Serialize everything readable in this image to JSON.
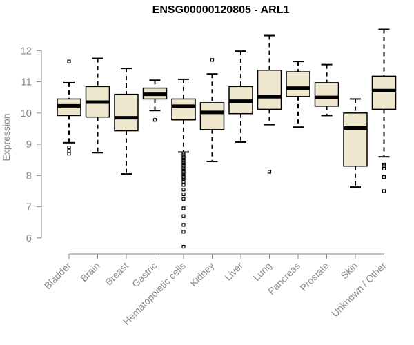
{
  "chart_data": {
    "type": "boxplot",
    "title": "ENSG00000120805 - ARL1",
    "ylabel": "Expression",
    "xlabel": "",
    "ylim": [
      5.6,
      13.0
    ],
    "yticks": [
      6,
      7,
      8,
      9,
      10,
      11,
      12
    ],
    "grid": false,
    "box_fill": "#efe8cf",
    "box_stroke": "#000000",
    "axis_color": "#888888",
    "categories": [
      "Bladder",
      "Brain",
      "Breast",
      "Gastric",
      "Hematopoietic cells",
      "Kidney",
      "Liver",
      "Lung",
      "Pancreas",
      "Prostate",
      "Skin",
      "Unknown / Other"
    ],
    "boxes": [
      {
        "category": "Bladder",
        "whisker_low": 9.05,
        "q1": 9.92,
        "median": 10.23,
        "q3": 10.45,
        "whisker_high": 10.97,
        "outliers": [
          11.65,
          8.9,
          8.78,
          8.7
        ]
      },
      {
        "category": "Brain",
        "whisker_low": 8.73,
        "q1": 9.87,
        "median": 10.35,
        "q3": 10.85,
        "whisker_high": 11.75,
        "outliers": []
      },
      {
        "category": "Breast",
        "whisker_low": 8.05,
        "q1": 9.43,
        "median": 9.85,
        "q3": 10.6,
        "whisker_high": 11.43,
        "outliers": []
      },
      {
        "category": "Gastric",
        "whisker_low": 10.08,
        "q1": 10.45,
        "median": 10.6,
        "q3": 10.8,
        "whisker_high": 11.05,
        "outliers": [
          9.78
        ]
      },
      {
        "category": "Hematopoietic cells",
        "whisker_low": 8.75,
        "q1": 9.78,
        "median": 10.22,
        "q3": 10.45,
        "whisker_high": 11.08,
        "outliers": [
          8.7,
          8.65,
          8.6,
          8.55,
          8.5,
          8.45,
          8.4,
          8.35,
          8.3,
          8.25,
          8.2,
          8.15,
          8.1,
          8.05,
          8.0,
          7.95,
          7.9,
          7.8,
          7.7,
          7.55,
          7.4,
          7.25,
          6.95,
          6.7,
          6.42,
          6.2,
          5.72
        ]
      },
      {
        "category": "Kidney",
        "whisker_low": 8.45,
        "q1": 9.47,
        "median": 10.02,
        "q3": 10.33,
        "whisker_high": 11.25,
        "outliers": [
          11.7
        ]
      },
      {
        "category": "Liver",
        "whisker_low": 9.07,
        "q1": 9.98,
        "median": 10.38,
        "q3": 10.85,
        "whisker_high": 11.98,
        "outliers": []
      },
      {
        "category": "Lung",
        "whisker_low": 9.63,
        "q1": 10.12,
        "median": 10.52,
        "q3": 11.37,
        "whisker_high": 12.48,
        "outliers": [
          8.12
        ]
      },
      {
        "category": "Pancreas",
        "whisker_low": 9.55,
        "q1": 10.53,
        "median": 10.8,
        "q3": 11.32,
        "whisker_high": 11.65,
        "outliers": []
      },
      {
        "category": "Prostate",
        "whisker_low": 9.92,
        "q1": 10.22,
        "median": 10.5,
        "q3": 10.97,
        "whisker_high": 11.55,
        "outliers": []
      },
      {
        "category": "Skin",
        "whisker_low": 7.63,
        "q1": 8.3,
        "median": 9.52,
        "q3": 10.0,
        "whisker_high": 10.45,
        "outliers": []
      },
      {
        "category": "Unknown / Other",
        "whisker_low": 8.6,
        "q1": 10.12,
        "median": 10.72,
        "q3": 11.18,
        "whisker_high": 12.68,
        "outliers": [
          8.35,
          8.3,
          8.22,
          7.95,
          7.5
        ]
      }
    ]
  }
}
